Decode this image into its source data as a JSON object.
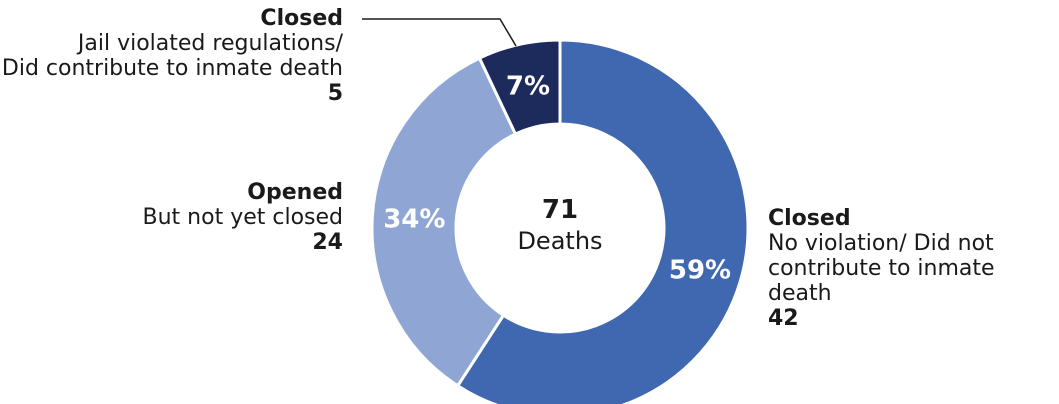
{
  "chart_data": {
    "type": "pie",
    "donut": true,
    "center_value": "71",
    "center_label": "Deaths",
    "slices": [
      {
        "title": "Closed",
        "description": [
          "No violation/ Did not",
          "contribute to inmate death"
        ],
        "count": "42",
        "percent_label": "59%",
        "value": 42,
        "color": "#3f68b0"
      },
      {
        "title": "Opened",
        "description": [
          "But not yet closed"
        ],
        "count": "24",
        "percent_label": "34%",
        "value": 24,
        "color": "#8fa6d5"
      },
      {
        "title": "Closed",
        "description": [
          "Jail violated regulations/",
          "Did contribute to inmate death"
        ],
        "count": "5",
        "percent_label": "7%",
        "value": 5,
        "color": "#1d2a5c"
      }
    ]
  }
}
